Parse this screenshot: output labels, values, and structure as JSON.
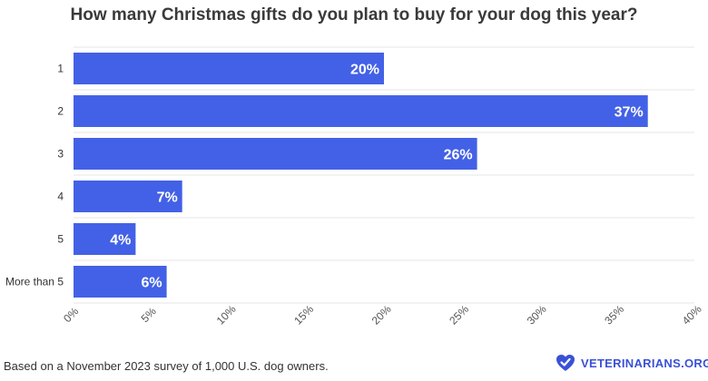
{
  "brand_color": "#3a51d6",
  "bar_color": "#4361e6",
  "footnote": "Based on a November 2023 survey of 1,000 U.S. dog owners.",
  "brand": {
    "name": "VETERINARIANS.ORG",
    "icon": "heart-checkmark-logo-icon"
  },
  "chart_data": {
    "type": "bar",
    "orientation": "horizontal",
    "title": "How many Christmas gifts do you plan to buy for your dog this year?",
    "categories": [
      "1",
      "2",
      "3",
      "4",
      "5",
      "More than 5"
    ],
    "values": [
      20,
      37,
      26,
      7,
      4,
      6
    ],
    "value_labels": [
      "20%",
      "37%",
      "26%",
      "7%",
      "4%",
      "6%"
    ],
    "xlim": [
      0,
      40
    ],
    "x_ticks": [
      "0%",
      "5%",
      "10%",
      "15%",
      "20%",
      "25%",
      "30%",
      "35%",
      "40%"
    ],
    "xlabel": "",
    "ylabel": "",
    "grid": true
  }
}
